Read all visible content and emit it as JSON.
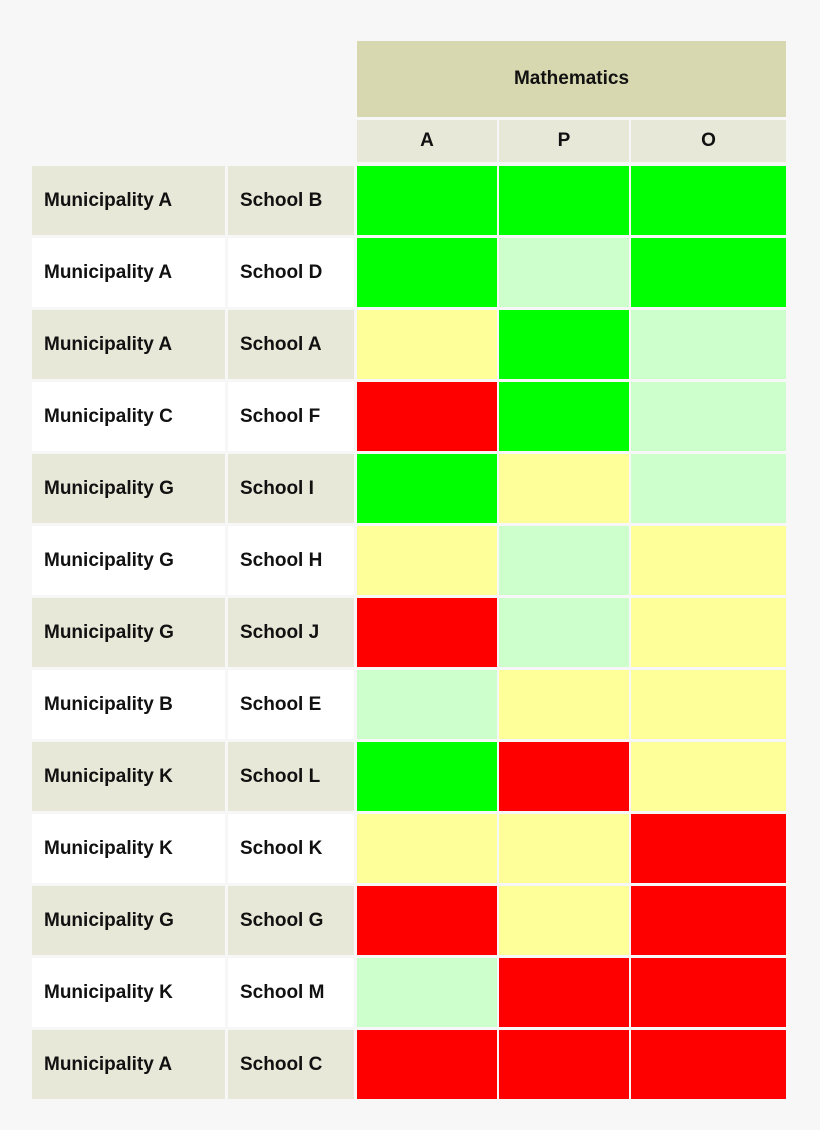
{
  "chart_data": {
    "type": "heatmap",
    "subject": "Mathematics",
    "columns": [
      "A",
      "P",
      "O"
    ],
    "rows": [
      {
        "municipality": "Municipality A",
        "school": "School B",
        "levels": [
          "green",
          "green",
          "green"
        ]
      },
      {
        "municipality": "Municipality A",
        "school": "School D",
        "levels": [
          "green",
          "light-green",
          "green"
        ]
      },
      {
        "municipality": "Municipality A",
        "school": "School A",
        "levels": [
          "yellow",
          "green",
          "light-green"
        ]
      },
      {
        "municipality": "Municipality C",
        "school": "School F",
        "levels": [
          "red",
          "green",
          "light-green"
        ]
      },
      {
        "municipality": "Municipality G",
        "school": "School I",
        "levels": [
          "green",
          "yellow",
          "light-green"
        ]
      },
      {
        "municipality": "Municipality G",
        "school": "School H",
        "levels": [
          "yellow",
          "light-green",
          "yellow"
        ]
      },
      {
        "municipality": "Municipality G",
        "school": "School J",
        "levels": [
          "red",
          "light-green",
          "yellow"
        ]
      },
      {
        "municipality": "Municipality B",
        "school": "School E",
        "levels": [
          "light-green",
          "yellow",
          "yellow"
        ]
      },
      {
        "municipality": "Municipality K",
        "school": "School L",
        "levels": [
          "green",
          "red",
          "yellow"
        ]
      },
      {
        "municipality": "Municipality K",
        "school": "School K",
        "levels": [
          "yellow",
          "yellow",
          "red"
        ]
      },
      {
        "municipality": "Municipality G",
        "school": "School G",
        "levels": [
          "red",
          "yellow",
          "red"
        ]
      },
      {
        "municipality": "Municipality K",
        "school": "School M",
        "levels": [
          "light-green",
          "red",
          "red"
        ]
      },
      {
        "municipality": "Municipality A",
        "school": "School C",
        "levels": [
          "red",
          "red",
          "red"
        ]
      }
    ],
    "colors": {
      "green": "#00ff00",
      "light-green": "#ccffcc",
      "yellow": "#ffff99",
      "red": "#ff0000"
    },
    "grid": true,
    "legend": "none"
  }
}
